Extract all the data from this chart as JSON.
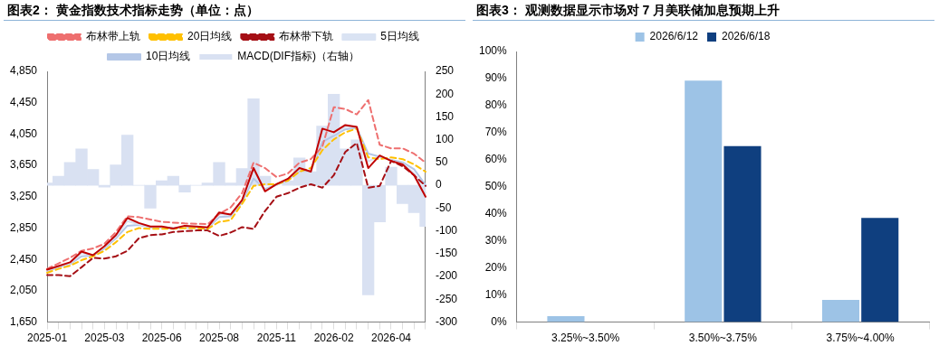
{
  "chart_data": [
    {
      "type": "line",
      "title": "图表2：  黄金指数技术指标走势（单位：点）",
      "categories": [
        "2025-01",
        null,
        null,
        null,
        null,
        "2025-03",
        null,
        null,
        null,
        null,
        "2025-06",
        null,
        null,
        null,
        null,
        "2025-08",
        null,
        null,
        null,
        null,
        "2025-11",
        null,
        null,
        null,
        null,
        "2026-02",
        null,
        null,
        null,
        null,
        "2026-04",
        null,
        null,
        null
      ],
      "series": [
        {
          "name": "MACD(DIF指标)（右轴）",
          "type": "bar",
          "axis": "y2",
          "color": "#d9e1f2",
          "values": [
            5,
            20,
            50,
            80,
            35,
            -4,
            45,
            110,
            0,
            -50,
            10,
            20,
            -15,
            0,
            5,
            50,
            5,
            37,
            190,
            20,
            null,
            10,
            60,
            30,
            130,
            200,
            80,
            100,
            -240,
            -80,
            40,
            -40,
            -60,
            -90
          ]
        },
        {
          "color": "#c00000",
          "type": "line",
          "line_style": "solid",
          "values": [
            2320,
            2366,
            2413,
            2550,
            2505,
            2620,
            2760,
            2980,
            2915,
            2870,
            2870,
            2845,
            2880,
            2870,
            2860,
            3050,
            3022,
            3205,
            3616,
            3319,
            3410,
            3479,
            3616,
            3570,
            4119,
            4073,
            4165,
            4140,
            3616,
            3776,
            3707,
            3662,
            3525,
            3250
          ]
        },
        {
          "name": "布林带上轨",
          "type": "line",
          "line_style": "dashed",
          "color": "#ee6f6f",
          "values": [
            2330,
            2400,
            2470,
            2560,
            2590,
            2650,
            2800,
            3000,
            2990,
            2960,
            2930,
            2920,
            2910,
            2905,
            2900,
            3030,
            3113,
            3296,
            3685,
            3616,
            3502,
            3547,
            3685,
            3730,
            3890,
            4393,
            4370,
            4300,
            4484,
            3913,
            3867,
            3867,
            3799,
            3685
          ]
        },
        {
          "name": "20日均线",
          "type": "line",
          "line_style": "dashed",
          "color": "#ffc000",
          "values": [
            2280,
            2330,
            2370,
            2440,
            2490,
            2560,
            2670,
            2800,
            2850,
            2840,
            2840,
            2840,
            2850,
            2850,
            2840,
            2930,
            2950,
            3159,
            3388,
            3410,
            3410,
            3456,
            3570,
            3616,
            3845,
            3982,
            4073,
            4119,
            3753,
            3730,
            3753,
            3730,
            3662,
            3570
          ]
        },
        {
          "name": "布林带下轨",
          "type": "line",
          "line_style": "dashed",
          "color": "#a50f15",
          "values": [
            2250,
            2250,
            2236,
            2350,
            2470,
            2460,
            2490,
            2560,
            2720,
            2760,
            2770,
            2800,
            2810,
            2820,
            2820,
            2750,
            2793,
            2862,
            2839,
            3068,
            3250,
            3296,
            3365,
            3410,
            3365,
            3525,
            3822,
            3936,
            3365,
            3388,
            3707,
            3639,
            3525,
            3388
          ]
        },
        {
          "name": "5日均线",
          "type": "line",
          "line_style": "solid",
          "color": "#dae3f3",
          "values": [
            2310,
            2360,
            2400,
            2530,
            2505,
            2610,
            2740,
            2940,
            2900,
            2865,
            2865,
            2848,
            2870,
            2865,
            2855,
            3030,
            3015,
            3200,
            3550,
            3330,
            3405,
            3470,
            3600,
            3575,
            4050,
            4050,
            4140,
            4140,
            3700,
            3770,
            3710,
            3670,
            3550,
            3300
          ]
        },
        {
          "name": "10日均线",
          "type": "line",
          "line_style": "solid",
          "color": "#b4c7e7",
          "values": [
            2300,
            2350,
            2390,
            2490,
            2500,
            2590,
            2720,
            2880,
            2890,
            2860,
            2860,
            2850,
            2860,
            2860,
            2850,
            2990,
            3000,
            3180,
            3480,
            3350,
            3400,
            3460,
            3580,
            3580,
            3950,
            4030,
            4110,
            4130,
            3800,
            3760,
            3720,
            3690,
            3600,
            3400
          ]
        }
      ],
      "ylim": [
        1650,
        4850
      ],
      "yticks": [
        {
          "value": 1650,
          "label": "1,650"
        },
        {
          "value": 2050,
          "label": "2,050"
        },
        {
          "value": 2450,
          "label": "2,450"
        },
        {
          "value": 2850,
          "label": "2,850"
        },
        {
          "value": 3250,
          "label": "3,250"
        },
        {
          "value": 3650,
          "label": "3,650"
        },
        {
          "value": 4050,
          "label": "4,050"
        },
        {
          "value": 4450,
          "label": "4,450"
        },
        {
          "value": 4850,
          "label": "4,850"
        }
      ],
      "y2lim": [
        -300,
        250
      ],
      "y2ticks": [
        -300,
        -250,
        -200,
        -150,
        -100,
        -50,
        0,
        50,
        100,
        150,
        200,
        250
      ],
      "marker": "none",
      "grid": false,
      "legend": "top"
    },
    {
      "type": "bar",
      "title": "图表3：  观测数据显示市场对 7 月美联储加息预期上升",
      "categories": [
        "3.25%~3.50%",
        "3.50%~3.75%",
        "3.75%~4.00%"
      ],
      "series": [
        {
          "name": "2026/6/12",
          "color": "#9dc3e6",
          "values": [
            2.2,
            89.2,
            8.2
          ]
        },
        {
          "name": "2026/6/18",
          "color": "#0f3f7f",
          "values": [
            0,
            65,
            38.5
          ]
        }
      ],
      "ylim": [
        0,
        100
      ],
      "yticks": [
        {
          "value": 0,
          "label": "0%"
        },
        {
          "value": 10,
          "label": "10%"
        },
        {
          "value": 20,
          "label": "20%"
        },
        {
          "value": 30,
          "label": "30%"
        },
        {
          "value": 40,
          "label": "40%"
        },
        {
          "value": 50,
          "label": "50%"
        },
        {
          "value": 60,
          "label": "60%"
        },
        {
          "value": 70,
          "label": "70%"
        },
        {
          "value": 80,
          "label": "80%"
        },
        {
          "value": 90,
          "label": "90%"
        },
        {
          "value": 100,
          "label": "100%"
        }
      ],
      "grid": false,
      "legend": "top"
    }
  ]
}
